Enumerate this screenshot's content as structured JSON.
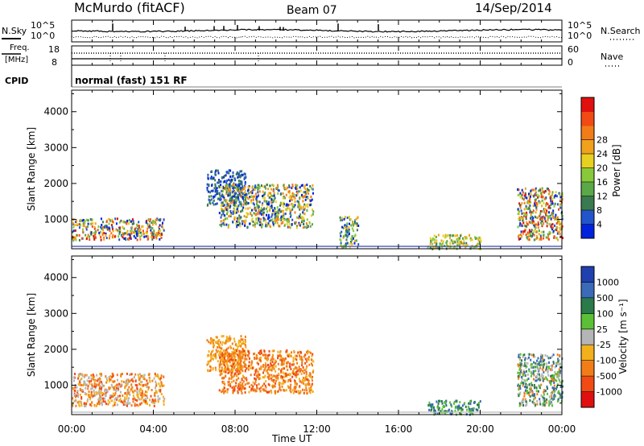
{
  "header": {
    "station": "McMurdo (fitACF)",
    "beam": "Beam 07",
    "date": "14/Sep/2014"
  },
  "noise_panel": {
    "left_label": "N.Sky",
    "right_label": "N.Search",
    "left_ticks": [
      "10^5",
      "10^0"
    ],
    "right_ticks": [
      "10^5",
      "10^0"
    ]
  },
  "freq_panel": {
    "left_label_1": "Freq.",
    "left_label_2": "[MHz]",
    "left_ticks": [
      "18",
      "8"
    ],
    "right_label": "Nave",
    "right_ticks": [
      "60",
      "0"
    ]
  },
  "cpid": {
    "label": "CPID",
    "value": "normal (fast) 151 RF"
  },
  "colors": {
    "power": [
      "#0022dd",
      "#2255cc",
      "#3a7a50",
      "#5aa848",
      "#88c93a",
      "#e8d020",
      "#f0a21c",
      "#f27d18",
      "#f24a14",
      "#e01010"
    ],
    "velocity": [
      "#2040b0",
      "#3a6ab8",
      "#2a7a4a",
      "#5bc035",
      "#b5b5b5",
      "#f2b01c",
      "#f27d18",
      "#f24a14",
      "#e01010"
    ]
  },
  "chart_data": [
    {
      "type": "heatmap",
      "title": "Power",
      "xlabel": "Time UT",
      "ylabel": "Slant Range [km]",
      "x_ticks": [
        "00:00",
        "04:00",
        "08:00",
        "12:00",
        "16:00",
        "20:00",
        "00:00"
      ],
      "y_ticks": [
        1000,
        2000,
        3000,
        4000
      ],
      "ylim": [
        180,
        4600
      ],
      "colorbar": {
        "label": "Power [dB]",
        "ticks": [
          "4",
          "8",
          "12",
          "16",
          "20",
          "24",
          "28"
        ]
      },
      "regions": [
        {
          "t_start": 0.0,
          "t_end": 4.5,
          "r_low": 450,
          "r_high": 1050,
          "level": "mixed 4-28"
        },
        {
          "t_start": 6.6,
          "t_end": 8.5,
          "r_low": 1400,
          "r_high": 2400,
          "level": "low 4-8"
        },
        {
          "t_start": 7.2,
          "t_end": 11.8,
          "r_low": 800,
          "r_high": 2000,
          "level": "mixed 4-24"
        },
        {
          "t_start": 13.1,
          "t_end": 14.0,
          "r_low": 250,
          "r_high": 1100,
          "level": "mixed 4-20"
        },
        {
          "t_start": 17.4,
          "t_end": 20.0,
          "r_low": 200,
          "r_high": 600,
          "level": "mixed 8-20"
        },
        {
          "t_start": 21.8,
          "t_end": 24.0,
          "r_low": 450,
          "r_high": 1900,
          "level": "mixed 4-28"
        }
      ]
    },
    {
      "type": "heatmap",
      "title": "Velocity",
      "xlabel": "Time UT",
      "ylabel": "Slant Range [km]",
      "x_ticks": [
        "00:00",
        "04:00",
        "08:00",
        "12:00",
        "16:00",
        "20:00",
        "00:00"
      ],
      "y_ticks": [
        1000,
        2000,
        3000,
        4000
      ],
      "ylim": [
        180,
        4600
      ],
      "colorbar": {
        "label": "Velocity [m s⁻¹]",
        "ticks": [
          "1000",
          "500",
          "100",
          "25",
          "-25",
          "-100",
          "-500",
          "-1000"
        ]
      },
      "regions": [
        {
          "t_start": 0.0,
          "t_end": 4.5,
          "r_low": 450,
          "r_high": 1350,
          "level": "mixed -100 to -500"
        },
        {
          "t_start": 6.6,
          "t_end": 8.5,
          "r_low": 1400,
          "r_high": 2400,
          "level": "-100"
        },
        {
          "t_start": 7.2,
          "t_end": 11.8,
          "r_low": 800,
          "r_high": 2000,
          "level": "-100 to -500"
        },
        {
          "t_start": 17.4,
          "t_end": 20.0,
          "r_low": 200,
          "r_high": 600,
          "level": "100 to 500"
        },
        {
          "t_start": 21.8,
          "t_end": 24.0,
          "r_low": 450,
          "r_high": 1900,
          "level": "mixed -500 to 500"
        }
      ]
    }
  ]
}
